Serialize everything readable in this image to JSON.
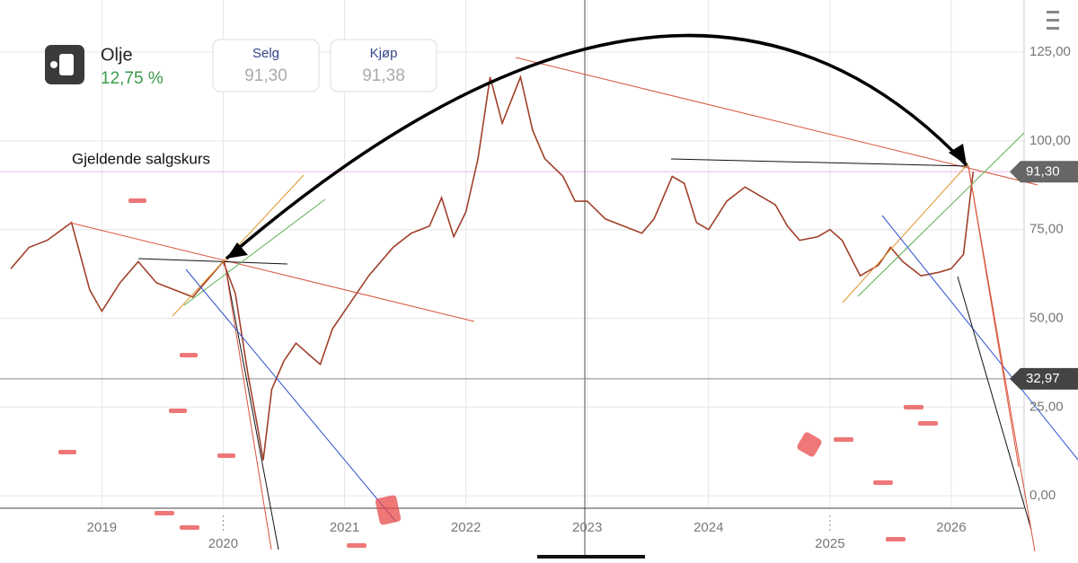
{
  "header": {
    "name": "Olje",
    "change": "12,75 %",
    "sell_label": "Selg",
    "sell_price": "91,30",
    "buy_label": "Kjøp",
    "buy_price": "91,38"
  },
  "chart_data": {
    "type": "line",
    "annotation": "Gjeldende salgskurs",
    "current_price": {
      "value": 91.3,
      "label": "91,30"
    },
    "crosshair_price": {
      "value": 32.97,
      "label": "32,97"
    },
    "xlim": [
      2018.22,
      2026.6
    ],
    "xticks": [
      2019,
      2020,
      2021,
      2022,
      2023,
      2024,
      2025,
      2026
    ],
    "ylim": [
      -3.5,
      139.7
    ],
    "yticks": [
      {
        "value": 0,
        "label": "0,00"
      },
      {
        "value": 25,
        "label": "25,00"
      },
      {
        "value": 50,
        "label": "50,00"
      },
      {
        "value": 75,
        "label": "75,00"
      },
      {
        "value": 100,
        "label": "100,00"
      },
      {
        "value": 125,
        "label": "125,00"
      }
    ],
    "grid": true,
    "series": [
      {
        "color": "#a0402a",
        "x": [
          2018.25,
          2018.4,
          2018.55,
          2018.75,
          2018.9,
          2019.0,
          2019.15,
          2019.3,
          2019.45,
          2019.6,
          2019.75,
          2019.9,
          2020.0,
          2020.1,
          2020.2,
          2020.28,
          2020.33,
          2020.4,
          2020.5,
          2020.6,
          2020.7,
          2020.8,
          2020.9,
          2021.0,
          2021.2,
          2021.4,
          2021.55,
          2021.7,
          2021.8,
          2021.9,
          2022.0,
          2022.1,
          2022.2,
          2022.3,
          2022.45,
          2022.55,
          2022.65,
          2022.8,
          2022.9,
          2023.0,
          2023.15,
          2023.3,
          2023.45,
          2023.55,
          2023.7,
          2023.8,
          2023.9,
          2024.0,
          2024.15,
          2024.3,
          2024.45,
          2024.55,
          2024.65,
          2024.75,
          2024.9,
          2025.0,
          2025.1,
          2025.25,
          2025.4,
          2025.5,
          2025.6,
          2025.75,
          2025.9,
          2026.0,
          2026.1,
          2026.18
        ],
        "values": [
          64,
          70,
          72,
          77,
          58,
          52,
          60,
          66,
          60,
          58,
          56,
          62,
          66,
          57,
          35,
          20,
          10,
          30,
          38,
          43,
          40,
          37,
          47,
          52,
          62,
          70,
          74,
          76,
          84,
          73,
          80,
          95,
          118,
          105,
          118,
          103,
          95,
          90,
          83,
          83,
          78,
          76,
          74,
          78,
          90,
          88,
          77,
          75,
          83,
          87,
          84,
          82,
          76,
          72,
          73,
          75,
          72,
          62,
          65,
          70,
          66,
          62,
          63,
          64,
          68,
          91.3
        ]
      }
    ]
  }
}
